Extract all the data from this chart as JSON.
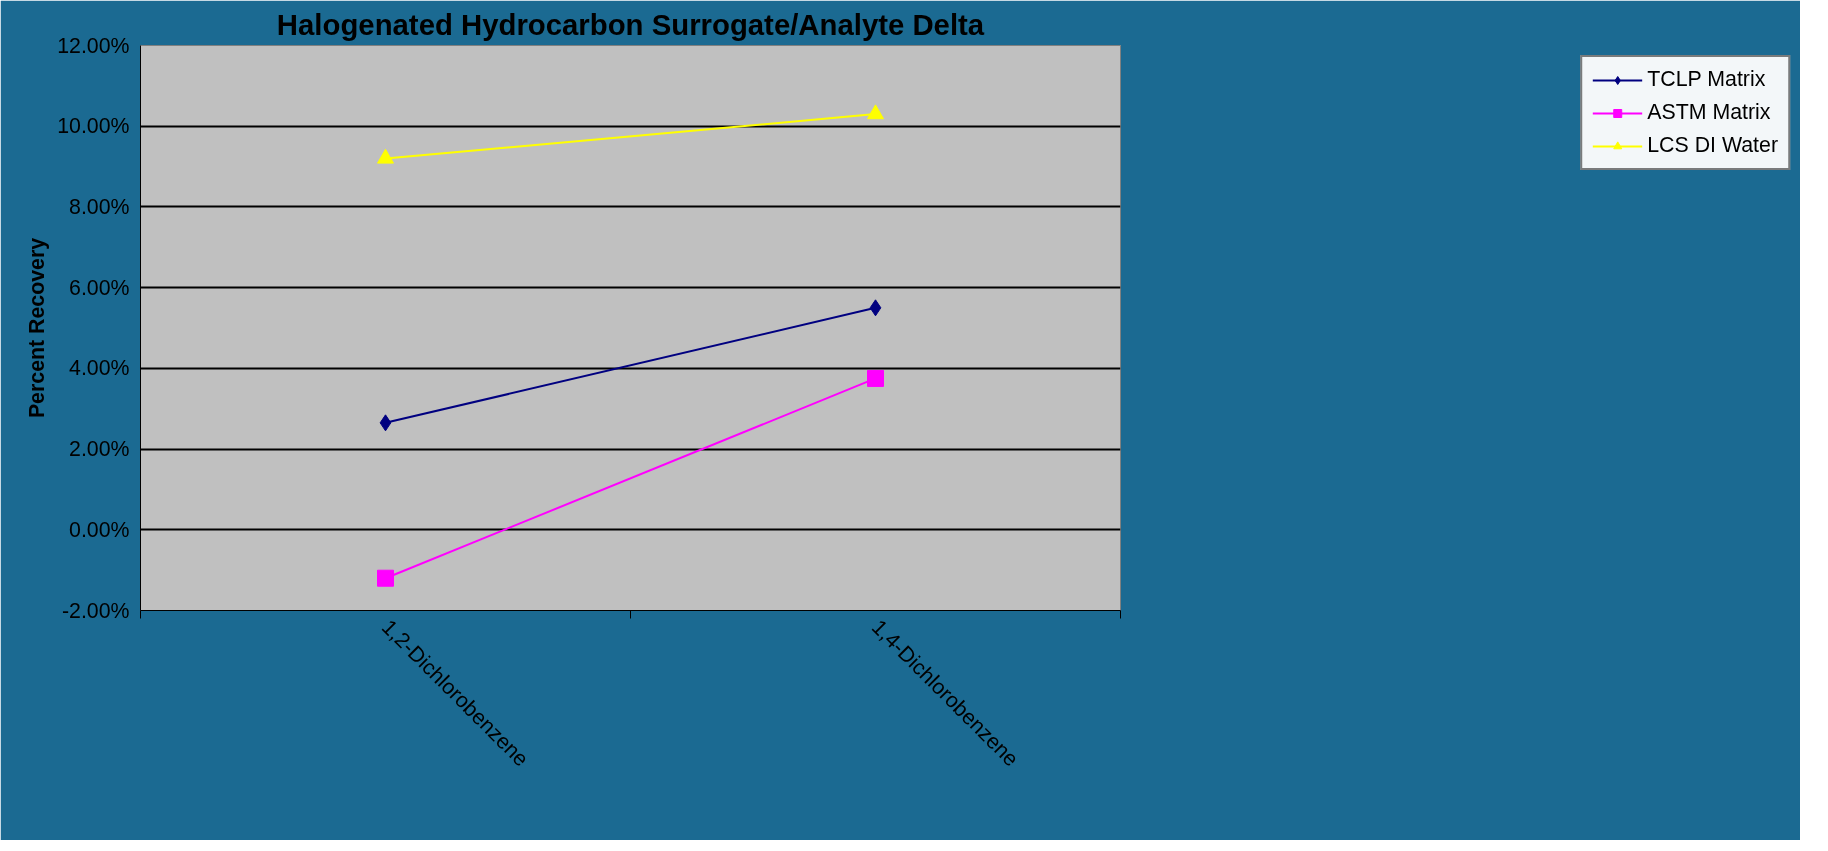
{
  "chart_data": {
    "type": "line",
    "title": "Halogenated Hydrocarbon Surrogate/Analyte Delta",
    "ylabel": "Percent Recovery",
    "categories": [
      "1,2-Dichlorobenzene",
      "1,4-Dichlorobenzene"
    ],
    "series": [
      {
        "name": "TCLP Matrix",
        "color": "#000080",
        "marker": "diamond",
        "values": [
          2.65,
          5.5
        ]
      },
      {
        "name": "ASTM Matrix",
        "color": "#ff00ff",
        "marker": "square",
        "values": [
          -1.2,
          3.75
        ]
      },
      {
        "name": "LCS DI Water",
        "color": "#ffff00",
        "marker": "triangle",
        "values": [
          9.2,
          10.3
        ]
      }
    ],
    "ylim": [
      -2,
      12
    ],
    "yticks": [
      {
        "value": -2,
        "label": "-2.00%"
      },
      {
        "value": 0,
        "label": "0.00%"
      },
      {
        "value": 2,
        "label": "2.00%"
      },
      {
        "value": 4,
        "label": "4.00%"
      },
      {
        "value": 6,
        "label": "6.00%"
      },
      {
        "value": 8,
        "label": "8.00%"
      },
      {
        "value": 10,
        "label": "10.00%"
      },
      {
        "value": 12,
        "label": "12.00%"
      }
    ],
    "grid": "y",
    "legend": "right"
  }
}
